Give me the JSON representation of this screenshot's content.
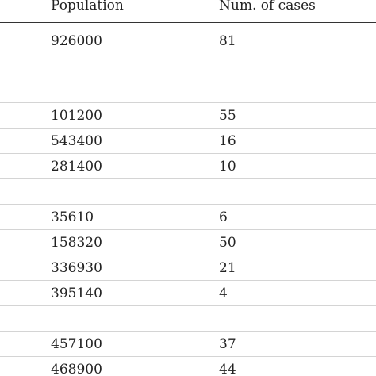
{
  "table": {
    "headers": {
      "population": "Population",
      "cases": "Num. of cases"
    },
    "rows": [
      {
        "population": "926000",
        "cases": "81"
      },
      {
        "population": "",
        "cases": ""
      },
      {
        "population": "101200",
        "cases": "55"
      },
      {
        "population": "543400",
        "cases": "16"
      },
      {
        "population": "281400",
        "cases": "10"
      },
      {
        "population": "",
        "cases": ""
      },
      {
        "population": "35610",
        "cases": "6"
      },
      {
        "population": "158320",
        "cases": "50"
      },
      {
        "population": "336930",
        "cases": "21"
      },
      {
        "population": "395140",
        "cases": "4"
      },
      {
        "population": "",
        "cases": ""
      },
      {
        "population": "457100",
        "cases": "37"
      },
      {
        "population": "468900",
        "cases": "44"
      }
    ]
  }
}
